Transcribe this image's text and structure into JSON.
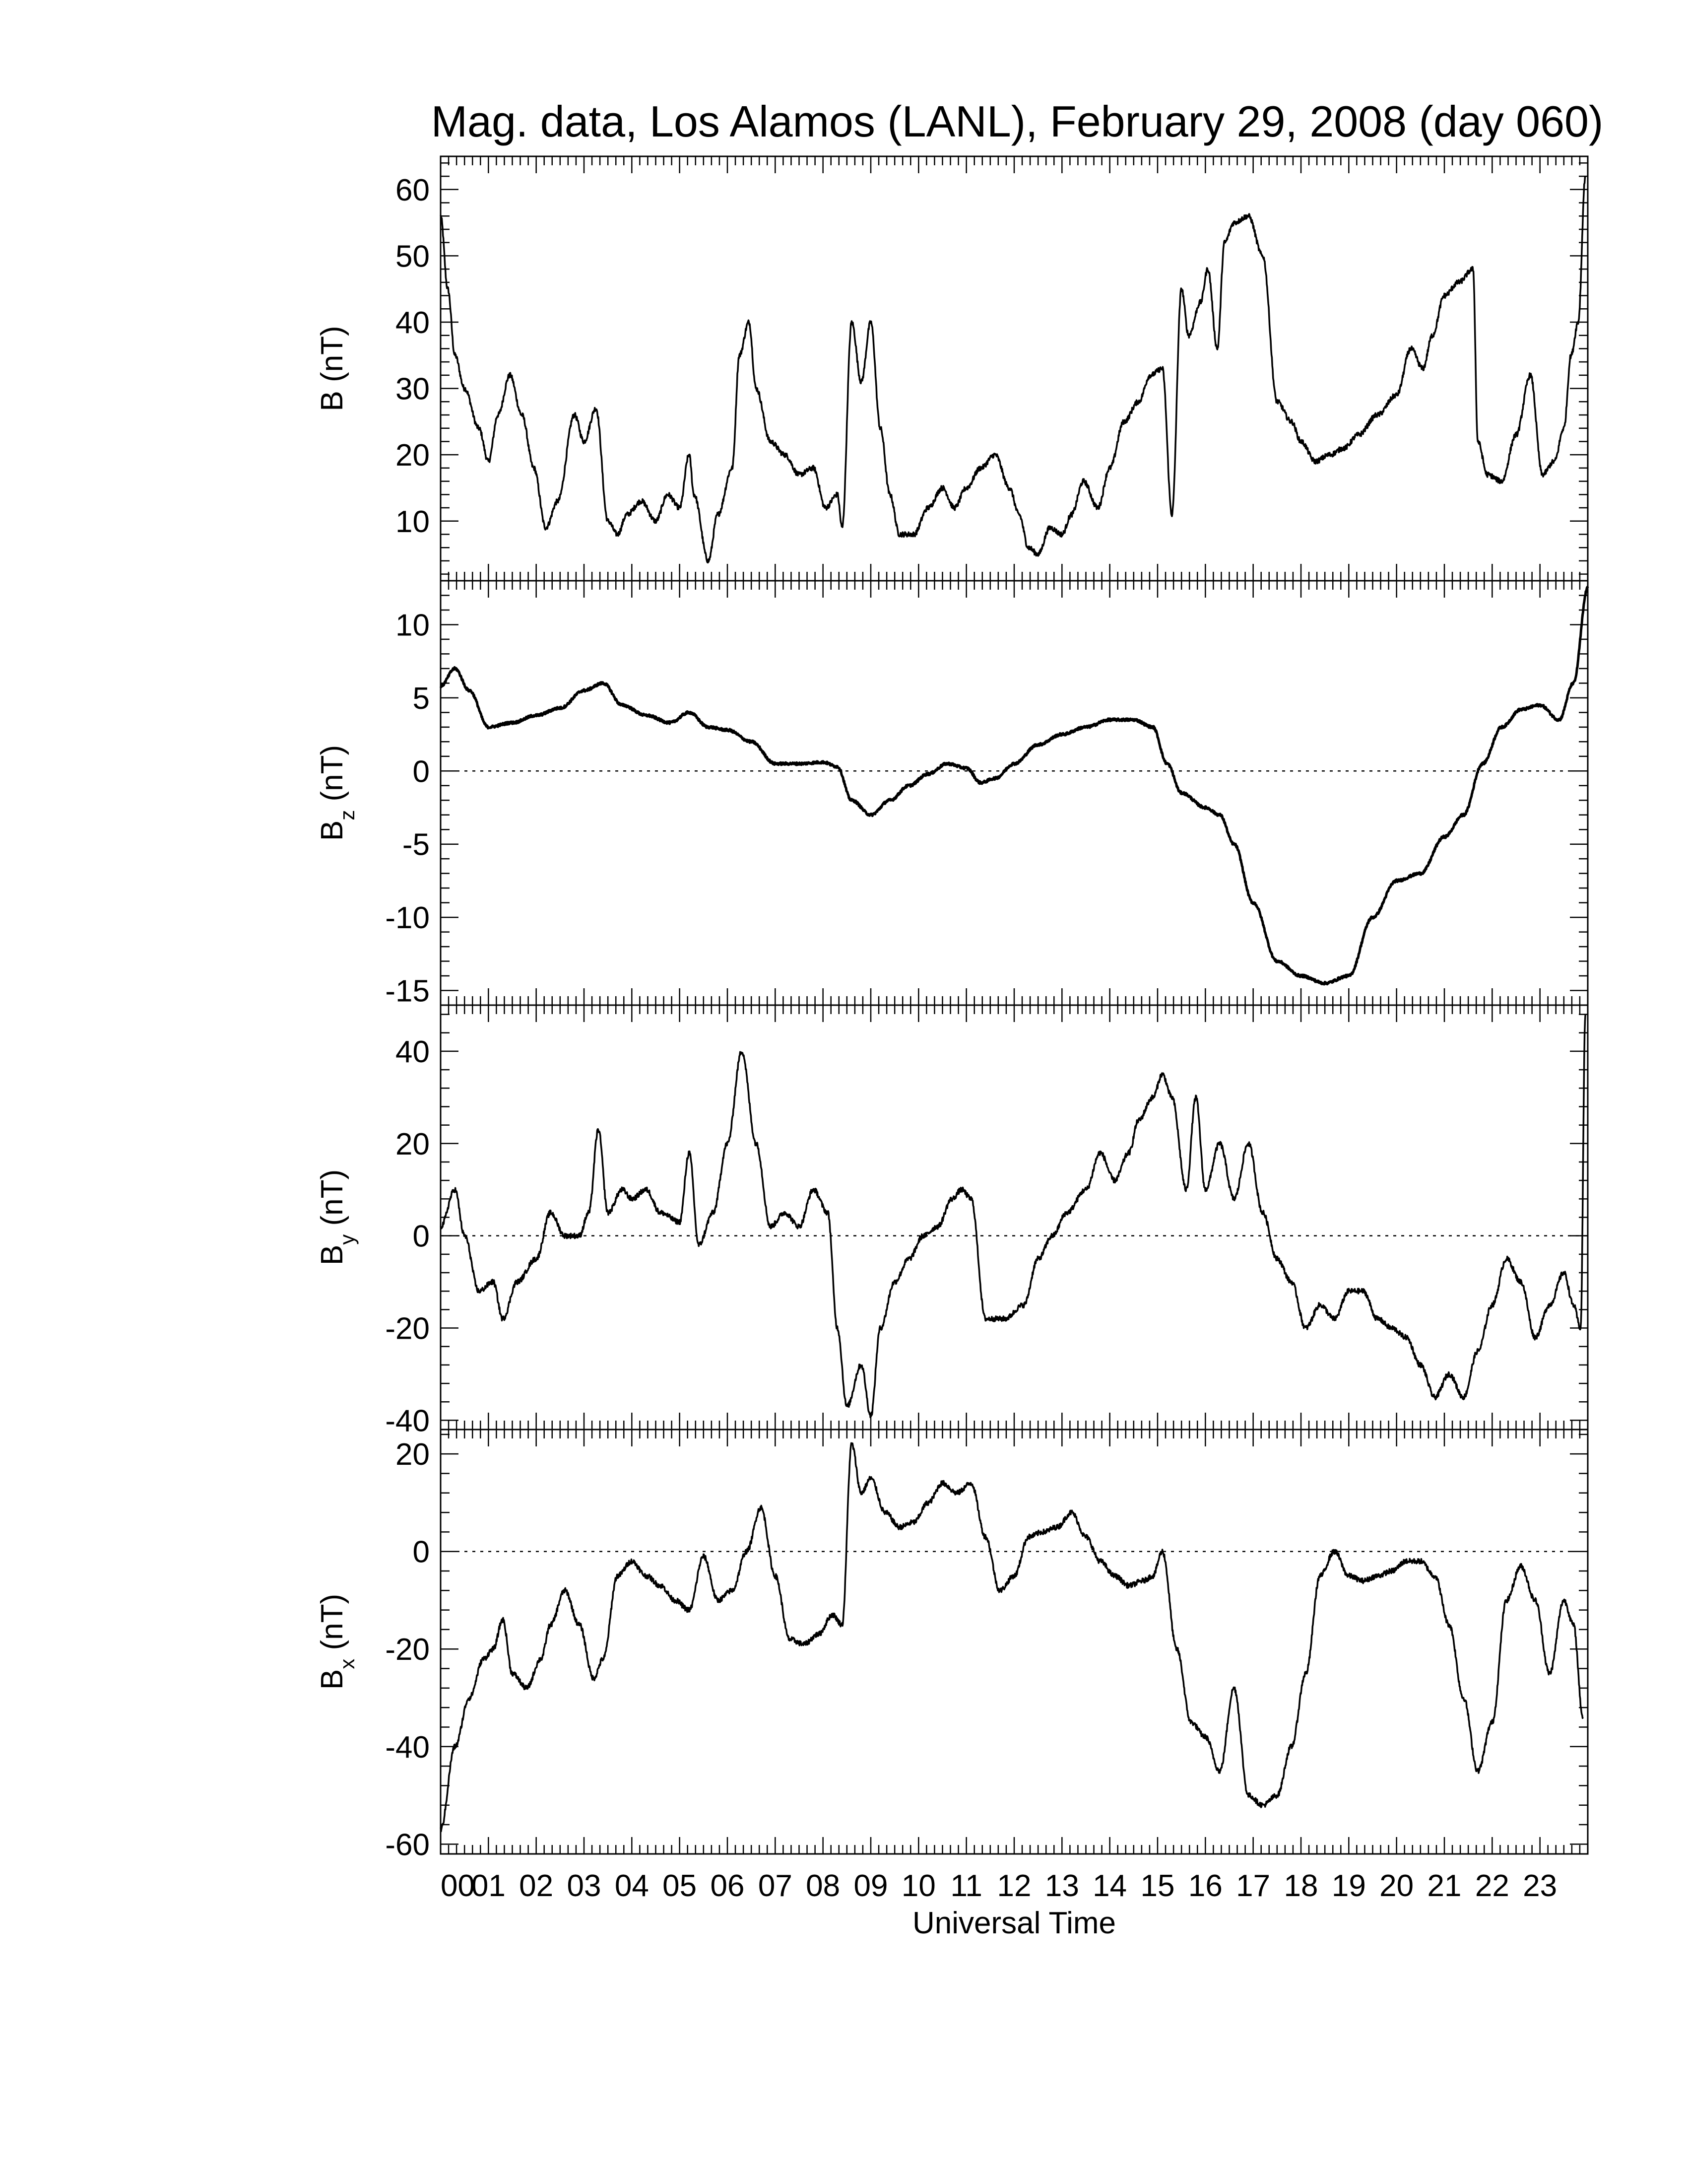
{
  "title": "Mag. data, Los Alamos (LANL), February 29, 2008 (day 060)",
  "xlabel": "Universal Time",
  "colors": {
    "line": "#000000",
    "background": "#ffffff",
    "zero_line": "#000000"
  },
  "chart_data": [
    {
      "type": "line",
      "ylabel_main": "B",
      "ylabel_sub": "",
      "ylabel_unit": "(nT)",
      "ylim": [
        1,
        65
      ],
      "yticks": [
        10,
        20,
        30,
        40,
        50,
        60
      ],
      "zero_line": false,
      "xlim": [
        0,
        24
      ],
      "x": [
        0,
        0.15,
        0.3,
        0.5,
        0.8,
        1.0,
        1.2,
        1.45,
        1.7,
        1.95,
        2.2,
        2.45,
        2.8,
        3.0,
        3.25,
        3.5,
        3.7,
        3.9,
        4.2,
        4.5,
        4.75,
        5.0,
        5.2,
        5.3,
        5.6,
        5.8,
        6.1,
        6.25,
        6.45,
        6.6,
        6.9,
        7.2,
        7.5,
        7.8,
        8.05,
        8.3,
        8.4,
        8.6,
        8.8,
        9.0,
        9.2,
        9.4,
        9.6,
        9.9,
        10.2,
        10.5,
        10.75,
        11.0,
        11.3,
        11.6,
        11.9,
        12.1,
        12.3,
        12.5,
        12.75,
        13.0,
        13.2,
        13.45,
        13.75,
        14.0,
        14.3,
        14.6,
        14.85,
        15.1,
        15.3,
        15.5,
        15.65,
        15.9,
        16.05,
        16.25,
        16.4,
        16.6,
        16.9,
        17.2,
        17.5,
        17.8,
        18.0,
        18.3,
        18.6,
        18.9,
        19.2,
        19.6,
        20.0,
        20.3,
        20.55,
        20.75,
        21.0,
        21.3,
        21.6,
        21.7,
        21.9,
        22.2,
        22.5,
        22.8,
        23.05,
        23.3,
        23.5,
        23.65,
        23.8,
        23.95
      ],
      "y": [
        56,
        45,
        35,
        30,
        24,
        19,
        26,
        32,
        26,
        18,
        9,
        13,
        26,
        22,
        27,
        10,
        8,
        11,
        13,
        10,
        14,
        12,
        20,
        14,
        4,
        11,
        18,
        35,
        40,
        30,
        22,
        20,
        17,
        18,
        12,
        14,
        9,
        40,
        31,
        40,
        24,
        14,
        8,
        8,
        12,
        15,
        12,
        15,
        18,
        20,
        15,
        11,
        6,
        5,
        9,
        8,
        11,
        16,
        12,
        18,
        25,
        28,
        32,
        33,
        11,
        45,
        38,
        43,
        48,
        36,
        52,
        55,
        56,
        50,
        28,
        25,
        22,
        19,
        20,
        21,
        23,
        26,
        29,
        36,
        33,
        38,
        44,
        46,
        48,
        22,
        17,
        16,
        23,
        32,
        17,
        19,
        24,
        35,
        40,
        62
      ]
    },
    {
      "type": "line",
      "ylabel_main": "B",
      "ylabel_sub": "z",
      "ylabel_unit": "(nT)",
      "ylim": [
        -16,
        13
      ],
      "yticks": [
        -15,
        -10,
        -5,
        0,
        5,
        10
      ],
      "zero_line": true,
      "xlim": [
        0,
        24
      ],
      "x": [
        0,
        0.3,
        0.6,
        1.0,
        1.5,
        2.0,
        2.5,
        3.0,
        3.4,
        3.8,
        4.3,
        4.8,
        5.2,
        5.6,
        6.0,
        6.5,
        7.0,
        7.5,
        8.0,
        8.3,
        8.6,
        9.0,
        9.4,
        9.8,
        10.2,
        10.6,
        11.0,
        11.3,
        11.6,
        12.0,
        12.5,
        13.0,
        13.5,
        14.0,
        14.5,
        14.9,
        15.2,
        15.5,
        16.0,
        16.3,
        16.6,
        17.0,
        17.5,
        18.0,
        18.5,
        19.0,
        19.5,
        20.0,
        20.5,
        21.0,
        21.4,
        21.8,
        22.2,
        22.6,
        23.0,
        23.4,
        23.7,
        24.0
      ],
      "y": [
        5.8,
        7.0,
        5.5,
        3.0,
        3.3,
        3.8,
        4.3,
        5.5,
        6.0,
        4.5,
        3.8,
        3.3,
        4.0,
        3.0,
        2.8,
        2.0,
        0.5,
        0.5,
        0.6,
        0.3,
        -2.0,
        -3.0,
        -2.0,
        -1.0,
        -0.2,
        0.5,
        0.2,
        -0.8,
        -0.5,
        0.5,
        1.8,
        2.5,
        3.0,
        3.5,
        3.5,
        3.0,
        0.5,
        -1.5,
        -2.5,
        -3.0,
        -5.0,
        -9.0,
        -13.0,
        -14.0,
        -14.5,
        -14.0,
        -10.0,
        -7.5,
        -7.0,
        -4.5,
        -3.0,
        0.5,
        3.0,
        4.2,
        4.5,
        3.5,
        6.0,
        12.5
      ]
    },
    {
      "type": "line",
      "ylabel_main": "B",
      "ylabel_sub": "y",
      "ylabel_unit": "(nT)",
      "ylim": [
        -42,
        50
      ],
      "yticks": [
        -40,
        -20,
        0,
        20,
        40
      ],
      "zero_line": true,
      "xlim": [
        0,
        24
      ],
      "x": [
        0,
        0.3,
        0.5,
        0.8,
        1.1,
        1.3,
        1.6,
        2.0,
        2.3,
        2.6,
        2.9,
        3.1,
        3.3,
        3.5,
        3.8,
        4.0,
        4.3,
        4.6,
        5.0,
        5.2,
        5.4,
        5.7,
        6.0,
        6.3,
        6.6,
        6.9,
        7.2,
        7.5,
        7.8,
        8.1,
        8.3,
        8.5,
        8.8,
        9.0,
        9.2,
        9.5,
        9.8,
        10.1,
        10.4,
        10.7,
        10.9,
        11.1,
        11.4,
        11.8,
        12.2,
        12.5,
        12.8,
        13.1,
        13.5,
        13.8,
        14.1,
        14.4,
        14.6,
        14.9,
        15.1,
        15.3,
        15.6,
        15.8,
        16.0,
        16.3,
        16.6,
        16.9,
        17.2,
        17.5,
        17.8,
        18.1,
        18.4,
        18.7,
        19.0,
        19.3,
        19.6,
        19.9,
        20.2,
        20.5,
        20.8,
        21.1,
        21.4,
        21.7,
        22.0,
        22.3,
        22.6,
        22.9,
        23.2,
        23.5,
        23.7,
        23.85,
        23.95
      ],
      "y": [
        2,
        10,
        0,
        -12,
        -10,
        -18,
        -10,
        -5,
        5,
        0,
        0,
        5,
        23,
        5,
        10,
        8,
        10,
        5,
        3,
        18,
        -2,
        5,
        20,
        40,
        20,
        2,
        5,
        2,
        10,
        5,
        -20,
        -37,
        -28,
        -39,
        -20,
        -10,
        -5,
        0,
        2,
        8,
        10,
        8,
        -18,
        -18,
        -15,
        -5,
        0,
        5,
        10,
        18,
        12,
        18,
        25,
        30,
        35,
        30,
        10,
        30,
        10,
        20,
        8,
        20,
        5,
        -5,
        -10,
        -20,
        -15,
        -18,
        -12,
        -12,
        -18,
        -20,
        -22,
        -28,
        -35,
        -30,
        -35,
        -25,
        -15,
        -5,
        -10,
        -22,
        -15,
        -8,
        -15,
        -20,
        48
      ]
    },
    {
      "type": "line",
      "ylabel_main": "B",
      "ylabel_sub": "x",
      "ylabel_unit": "(nT)",
      "ylim": [
        -62,
        25
      ],
      "yticks": [
        -60,
        -40,
        -20,
        0,
        20
      ],
      "zero_line": true,
      "xlim": [
        0,
        24
      ],
      "x": [
        0,
        0.3,
        0.6,
        0.9,
        1.1,
        1.3,
        1.5,
        1.8,
        2.1,
        2.3,
        2.6,
        2.9,
        3.2,
        3.4,
        3.7,
        4.0,
        4.3,
        4.6,
        4.9,
        5.2,
        5.5,
        5.8,
        6.1,
        6.4,
        6.7,
        7.0,
        7.3,
        7.6,
        7.9,
        8.2,
        8.4,
        8.6,
        8.8,
        9.0,
        9.3,
        9.6,
        9.9,
        10.2,
        10.5,
        10.8,
        11.1,
        11.4,
        11.7,
        12.0,
        12.3,
        12.6,
        12.9,
        13.2,
        13.5,
        13.8,
        14.1,
        14.4,
        14.7,
        14.9,
        15.1,
        15.4,
        15.7,
        16.0,
        16.3,
        16.6,
        16.9,
        17.2,
        17.5,
        17.8,
        18.1,
        18.4,
        18.7,
        19.0,
        19.3,
        19.6,
        19.9,
        20.2,
        20.5,
        20.8,
        21.1,
        21.4,
        21.7,
        22.0,
        22.3,
        22.6,
        22.9,
        23.2,
        23.5,
        23.7,
        23.9
      ],
      "y": [
        -57,
        -40,
        -30,
        -22,
        -20,
        -14,
        -25,
        -28,
        -22,
        -15,
        -8,
        -15,
        -26,
        -22,
        -5,
        -2,
        -5,
        -7,
        -10,
        -12,
        -1,
        -10,
        -8,
        0,
        9,
        -5,
        -18,
        -19,
        -17,
        -13,
        -15,
        22,
        12,
        15,
        8,
        5,
        6,
        10,
        14,
        12,
        14,
        3,
        -8,
        -5,
        3,
        4,
        5,
        8,
        3,
        -2,
        -5,
        -7,
        -6,
        -5,
        0,
        -20,
        -35,
        -38,
        -45,
        -28,
        -50,
        -52,
        -50,
        -40,
        -25,
        -5,
        0,
        -5,
        -6,
        -5,
        -4,
        -2,
        -2,
        -5,
        -15,
        -30,
        -45,
        -35,
        -10,
        -3,
        -10,
        -25,
        -10,
        -15,
        -34
      ]
    }
  ],
  "xticks": [
    "00",
    "01",
    "02",
    "03",
    "04",
    "05",
    "06",
    "07",
    "08",
    "09",
    "10",
    "11",
    "12",
    "13",
    "14",
    "15",
    "16",
    "17",
    "18",
    "19",
    "20",
    "21",
    "22",
    "23"
  ]
}
